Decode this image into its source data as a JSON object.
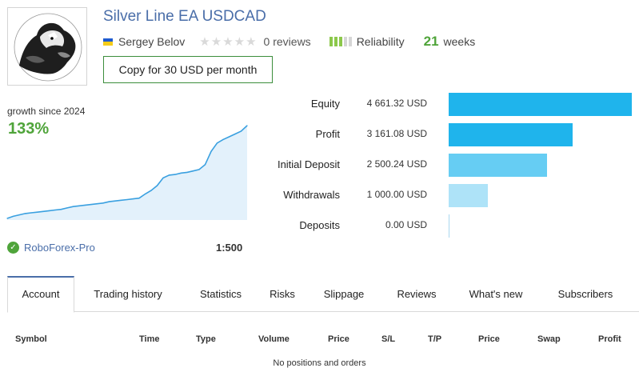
{
  "header": {
    "title": "Silver Line EA USDCAD",
    "author": "Sergey Belov",
    "author_flag": "ukraine-flag-icon",
    "reviews": "0 reviews",
    "stars_filled": 0,
    "stars_total": 5,
    "reliability_label": "Reliability",
    "reliability_level": 3,
    "reliability_max": 5,
    "weeks_value": "21",
    "weeks_label": "weeks",
    "copy_button": "Copy for 30 USD per month"
  },
  "growth": {
    "label": "growth since 2024",
    "value": "133%"
  },
  "account": {
    "broker": "RoboForex-Pro",
    "leverage": "1:500"
  },
  "finance": {
    "rows": [
      {
        "label": "Equity",
        "value": "4 661.32 USD",
        "amount": 4661.32,
        "color": "#1fb4ec"
      },
      {
        "label": "Profit",
        "value": "3 161.08 USD",
        "amount": 3161.08,
        "color": "#1fb4ec"
      },
      {
        "label": "Initial Deposit",
        "value": "2 500.24 USD",
        "amount": 2500.24,
        "color": "#66cdf3"
      },
      {
        "label": "Withdrawals",
        "value": "1 000.00 USD",
        "amount": 1000.0,
        "color": "#aee3f8"
      },
      {
        "label": "Deposits",
        "value": "0.00 USD",
        "amount": 0.0,
        "color": "#aad8f0"
      }
    ]
  },
  "tabs": [
    {
      "label": "Account",
      "active": true
    },
    {
      "label": "Trading history",
      "active": false
    },
    {
      "label": "Statistics",
      "active": false
    },
    {
      "label": "Risks",
      "active": false
    },
    {
      "label": "Slippage",
      "active": false
    },
    {
      "label": "Reviews",
      "active": false
    },
    {
      "label": "What's new",
      "active": false
    },
    {
      "label": "Subscribers",
      "active": false
    }
  ],
  "table": {
    "columns": [
      "Symbol",
      "Time",
      "Type",
      "Volume",
      "Price",
      "S/L",
      "T/P",
      "Price",
      "Swap",
      "Profit"
    ],
    "empty_message": "No positions and orders"
  },
  "chart_data": {
    "type": "area",
    "title": "growth since 2024",
    "x": [
      0,
      1,
      2,
      3,
      4,
      5,
      6,
      7,
      8,
      9,
      10,
      11,
      12,
      13,
      14,
      15,
      16,
      17,
      18,
      19,
      20,
      21,
      22,
      23,
      24,
      25,
      26,
      27,
      28,
      29,
      30,
      31,
      32,
      33,
      34,
      35,
      36,
      37,
      38,
      39,
      40
    ],
    "y": [
      0,
      3,
      5,
      7,
      8,
      9,
      10,
      11,
      12,
      13,
      15,
      17,
      18,
      19,
      20,
      21,
      22,
      24,
      25,
      26,
      27,
      28,
      29,
      35,
      40,
      47,
      58,
      62,
      63,
      65,
      66,
      68,
      70,
      77,
      96,
      108,
      113,
      117,
      121,
      125,
      133
    ],
    "ylim": [
      0,
      133
    ],
    "line_color": "#3aa0e0",
    "fill_color": "#e3f1fb"
  }
}
